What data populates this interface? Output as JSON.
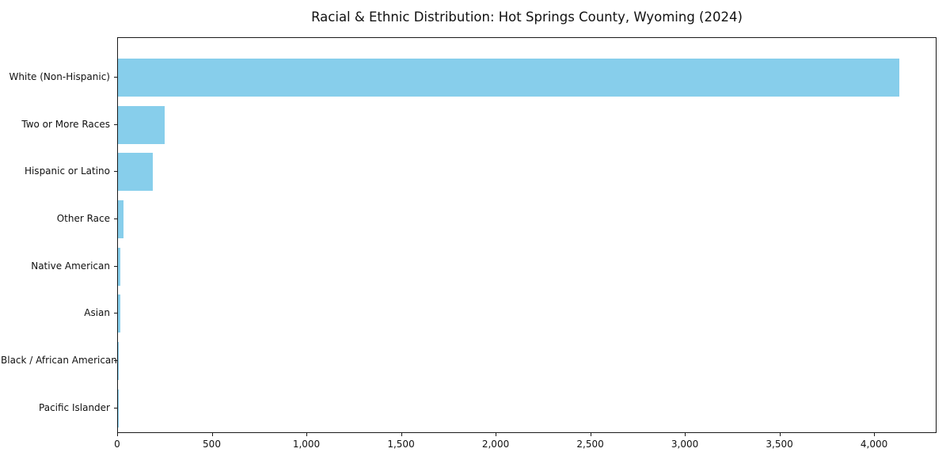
{
  "chart_data": {
    "type": "bar",
    "orientation": "horizontal",
    "title": "Racial & Ethnic Distribution: Hot Springs County, Wyoming (2024)",
    "categories": [
      "White (Non-Hispanic)",
      "Two or More Races",
      "Hispanic or Latino",
      "Other Race",
      "Native American",
      "Asian",
      "Black / African American",
      "Pacific Islander"
    ],
    "values": [
      4130,
      247,
      185,
      30,
      14,
      12,
      3,
      1
    ],
    "xlabel": "",
    "ylabel": "",
    "xlim": [
      0,
      4330
    ],
    "xticks": [
      0,
      500,
      1000,
      1500,
      2000,
      2500,
      3000,
      3500,
      4000
    ],
    "xtick_labels": [
      "0",
      "500",
      "1,000",
      "1,500",
      "2,000",
      "2,500",
      "3,000",
      "3,500",
      "4,000"
    ],
    "bar_color": "#87CEEB",
    "grid": false,
    "legend": null
  }
}
